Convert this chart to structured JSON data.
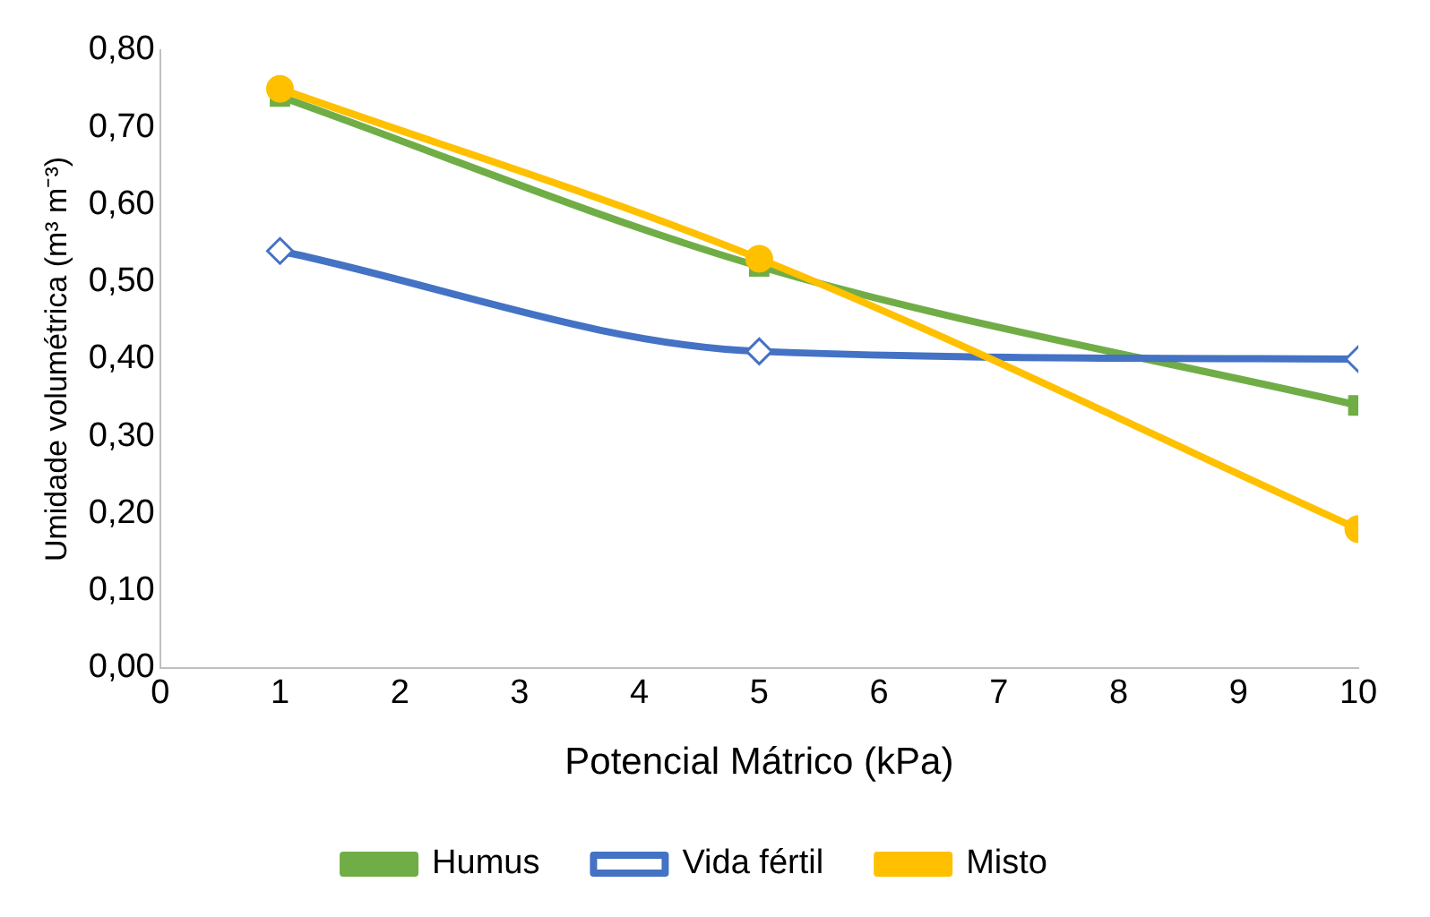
{
  "chart_data": {
    "type": "line",
    "xlabel": "Potencial Mátrico (kPa)",
    "ylabel": "Umidade volumétrica (m³ m⁻³)",
    "xlim": [
      0,
      10
    ],
    "xticks": [
      0,
      1,
      2,
      3,
      4,
      5,
      6,
      7,
      8,
      9,
      10
    ],
    "ylim": [
      0,
      0.8
    ],
    "yticks": [
      {
        "value": 0,
        "label": "0,00"
      },
      {
        "value": 0.1,
        "label": "0,10"
      },
      {
        "value": 0.2,
        "label": "0,20"
      },
      {
        "value": 0.3,
        "label": "0,30"
      },
      {
        "value": 0.4,
        "label": "0,40"
      },
      {
        "value": 0.5,
        "label": "0,50"
      },
      {
        "value": 0.6,
        "label": "0,60"
      },
      {
        "value": 0.7,
        "label": "0,70"
      },
      {
        "value": 0.8,
        "label": "0,80"
      }
    ],
    "grid": false,
    "legend": "bottom",
    "line_style": "solid",
    "series": [
      {
        "name": "Humus",
        "color": "#70ad47",
        "marker": "square",
        "x": [
          1,
          5,
          10
        ],
        "values": [
          0.74,
          0.52,
          0.34
        ]
      },
      {
        "name": "Vida fértil",
        "color": "#4472c4",
        "marker": "diamond",
        "x": [
          1,
          5,
          10
        ],
        "values": [
          0.54,
          0.41,
          0.4
        ]
      },
      {
        "name": "Misto",
        "color": "#ffc000",
        "marker": "circle",
        "x": [
          1,
          5,
          10
        ],
        "values": [
          0.75,
          0.53,
          0.18
        ]
      }
    ]
  }
}
